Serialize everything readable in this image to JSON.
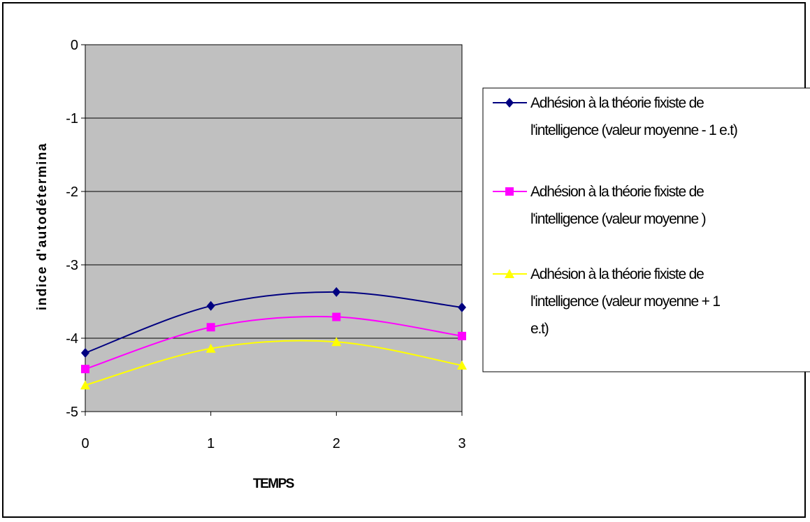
{
  "chart_data": {
    "type": "line",
    "title": "",
    "xlabel": "TEMPS",
    "ylabel": "indice d'autodétermina",
    "x": [
      0,
      1,
      2,
      3
    ],
    "x_tick_labels": [
      "0",
      "1",
      "2",
      "3"
    ],
    "y_tick_labels": [
      "0",
      "-1",
      "-2",
      "-3",
      "-4",
      "-5"
    ],
    "y_ticks": [
      0,
      -1,
      -2,
      -3,
      -4,
      -5
    ],
    "xlim": [
      0,
      3
    ],
    "ylim": [
      -5,
      0
    ],
    "grid": "horizontal",
    "plot_background": "#c0c0c0",
    "legend_position": "right",
    "series": [
      {
        "name": "Adhésion à la théorie fixiste de l'intelligence (valeur moyenne - 1 e.t)",
        "legend_lines": [
          "Adhésion à la théorie fixiste de",
          "l'intelligence (valeur moyenne - 1 e.t)"
        ],
        "values": [
          -4.2,
          -3.56,
          -3.37,
          -3.58
        ],
        "color": "#000080",
        "marker": "diamond"
      },
      {
        "name": "Adhésion à la théorie fixiste de l'intelligence (valeur moyenne )",
        "legend_lines": [
          "Adhésion à la théorie fixiste de",
          "l'intelligence (valeur moyenne )"
        ],
        "values": [
          -4.42,
          -3.85,
          -3.71,
          -3.97
        ],
        "color": "#ff00ff",
        "marker": "square"
      },
      {
        "name": "Adhésion à la théorie fixiste de l'intelligence (valeur moyenne + 1 e.t)",
        "legend_lines": [
          "Adhésion à la théorie fixiste de",
          "l'intelligence (valeur moyenne + 1",
          "e.t)"
        ],
        "values": [
          -4.64,
          -4.14,
          -4.05,
          -4.37
        ],
        "color": "#ffff00",
        "marker": "triangle"
      }
    ]
  }
}
